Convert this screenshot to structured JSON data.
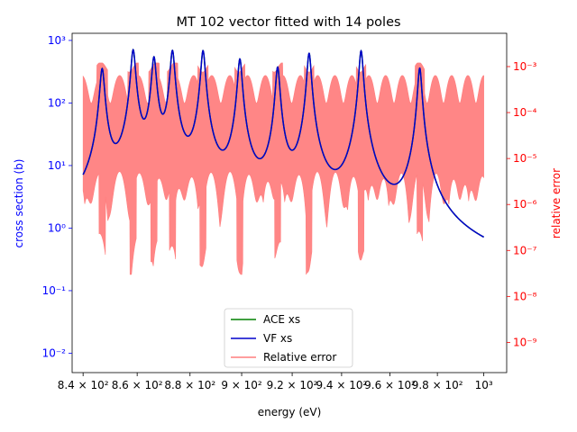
{
  "chart_data": {
    "type": "line",
    "title": "MT 102 vector fitted with 14 poles",
    "xlabel": "energy (eV)",
    "ylabel_left": "cross section (b)",
    "ylabel_right": "relative error",
    "x_scale": "log",
    "y_left_scale": "log",
    "y_right_scale": "log",
    "xlim": [
      836,
      1010
    ],
    "ylim_left": [
      0.0049,
      1300
    ],
    "ylim_right": [
      2.2e-10,
      0.0053
    ],
    "x_ticks": [
      {
        "value": 840,
        "label": "8.4 × 10²"
      },
      {
        "value": 860,
        "label": "8.6 × 10²"
      },
      {
        "value": 880,
        "label": "8.8 × 10²"
      },
      {
        "value": 900,
        "label": "9 × 10²"
      },
      {
        "value": 920,
        "label": "9.2 × 10²"
      },
      {
        "value": 940,
        "label": "9.4 × 10²"
      },
      {
        "value": 960,
        "label": "9.6 × 10²"
      },
      {
        "value": 980,
        "label": "9.8 × 10²"
      },
      {
        "value": 1000,
        "label": "10³"
      }
    ],
    "y_left_ticks": [
      {
        "value": 0.01,
        "label": "10⁻²"
      },
      {
        "value": 0.1,
        "label": "10⁻¹"
      },
      {
        "value": 1,
        "label": "10⁰"
      },
      {
        "value": 10,
        "label": "10¹"
      },
      {
        "value": 100,
        "label": "10²"
      },
      {
        "value": 1000,
        "label": "10³"
      }
    ],
    "y_right_ticks": [
      {
        "value": 1e-09,
        "label": "10⁻⁹"
      },
      {
        "value": 1e-08,
        "label": "10⁻⁸"
      },
      {
        "value": 1e-07,
        "label": "10⁻⁷"
      },
      {
        "value": 1e-06,
        "label": "10⁻⁶"
      },
      {
        "value": 1e-05,
        "label": "10⁻⁵"
      },
      {
        "value": 0.0001,
        "label": "10⁻⁴"
      },
      {
        "value": 0.001,
        "label": "10⁻³"
      }
    ],
    "resonances": [
      {
        "energy": 847.0,
        "peak": 350
      },
      {
        "energy": 858.5,
        "peak": 700
      },
      {
        "energy": 866.3,
        "peak": 530
      },
      {
        "energy": 873.3,
        "peak": 680
      },
      {
        "energy": 885.0,
        "peak": 680
      },
      {
        "energy": 899.3,
        "peak": 500
      },
      {
        "energy": 914.2,
        "peak": 370
      },
      {
        "energy": 926.8,
        "peak": 620
      },
      {
        "energy": 948.0,
        "peak": 680
      },
      {
        "energy": 972.5,
        "peak": 360
      }
    ],
    "series": [
      {
        "name": "ACE xs",
        "color": "#008000"
      },
      {
        "name": "VF xs",
        "color": "#0000cc"
      },
      {
        "name": "Relative error",
        "color": "#ff7f7f"
      }
    ],
    "legend_position": "lower center",
    "colors": {
      "left_axis": "#0000ff",
      "right_axis": "#ff0000"
    }
  }
}
